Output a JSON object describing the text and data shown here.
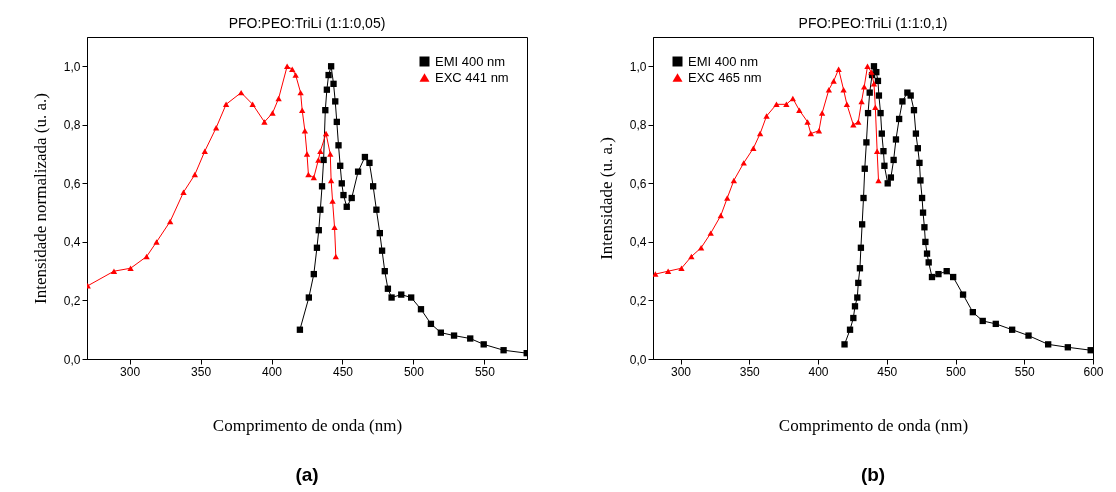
{
  "chart_data": [
    {
      "type": "line",
      "title": "PFO:PEO:TriLi (1:1:0,05)",
      "xlabel": "Comprimento de onda (nm)",
      "ylabel": "Intensidade normalizada (u. a.)",
      "annotations": [
        "(a)"
      ],
      "xlim": [
        270,
        580
      ],
      "xticks": [
        300,
        350,
        400,
        450,
        500,
        550
      ],
      "ylim": [
        0,
        1.1
      ],
      "yticks": [
        {
          "value": 0,
          "label": "0,0"
        },
        {
          "value": 0.2,
          "label": "0,2"
        },
        {
          "value": 0.4,
          "label": "0,4"
        },
        {
          "value": 0.6,
          "label": "0,6"
        },
        {
          "value": 0.8,
          "label": "0,8"
        },
        {
          "value": 1,
          "label": "1,0"
        }
      ],
      "grid": false,
      "legend": "top right",
      "series": [
        {
          "name": "EMI 400 nm",
          "color": "#000000",
          "marker": "square",
          "x": [
            420,
            426.3,
            429.8,
            432,
            433.3,
            434.4,
            435.6,
            436.7,
            437.9,
            439,
            440.2,
            442,
            443.7,
            444.9,
            446,
            447.2,
            448.4,
            449.5,
            450.7,
            453,
            456.5,
            461,
            465.8,
            469,
            471.6,
            473.9,
            476.3,
            477.9,
            479.8,
            482,
            484.6,
            491.4,
            498.4,
            505.3,
            512.3,
            519.3,
            528.6,
            540,
            549.5,
            563.5,
            579.8
          ],
          "values": [
            0.1,
            0.21,
            0.29,
            0.38,
            0.44,
            0.51,
            0.59,
            0.68,
            0.85,
            0.92,
            0.97,
            1.0,
            0.94,
            0.88,
            0.81,
            0.73,
            0.66,
            0.6,
            0.56,
            0.52,
            0.55,
            0.64,
            0.69,
            0.67,
            0.59,
            0.51,
            0.43,
            0.37,
            0.3,
            0.24,
            0.21,
            0.22,
            0.21,
            0.17,
            0.12,
            0.09,
            0.08,
            0.07,
            0.05,
            0.03,
            0.02
          ]
        },
        {
          "name": "EXC 441 nm",
          "color": "#ff0000",
          "marker": "triangle",
          "x": [
            270.5,
            289,
            300.7,
            312,
            319,
            328.6,
            338,
            346,
            353,
            361,
            368,
            378.6,
            386.7,
            395,
            400.7,
            405,
            411,
            414.6,
            417,
            420.5,
            421.6,
            423.5,
            425,
            426,
            429.8,
            433,
            434.4,
            438.4,
            441.4,
            442,
            443,
            444.4,
            445.3
          ],
          "values": [
            0.25,
            0.3,
            0.31,
            0.35,
            0.4,
            0.47,
            0.57,
            0.63,
            0.71,
            0.79,
            0.87,
            0.91,
            0.87,
            0.81,
            0.84,
            0.89,
            1.0,
            0.99,
            0.97,
            0.91,
            0.85,
            0.78,
            0.7,
            0.63,
            0.62,
            0.68,
            0.71,
            0.77,
            0.7,
            0.61,
            0.54,
            0.45,
            0.35
          ]
        }
      ]
    },
    {
      "type": "line",
      "title": "PFO:PEO:TriLi (1:1:0,1)",
      "xlabel": "Comprimento de onda (nm)",
      "ylabel": "Intensidade (u. a.)",
      "annotations": [
        "(b)"
      ],
      "xlim": [
        280,
        600
      ],
      "xticks": [
        300,
        350,
        400,
        450,
        500,
        550,
        600
      ],
      "ylim": [
        0,
        1.1
      ],
      "yticks": [
        {
          "value": 0,
          "label": "0,0"
        },
        {
          "value": 0.2,
          "label": "0,2"
        },
        {
          "value": 0.4,
          "label": "0,4"
        },
        {
          "value": 0.6,
          "label": "0,6"
        },
        {
          "value": 0.8,
          "label": "0,8"
        },
        {
          "value": 1,
          "label": "1,0"
        }
      ],
      "grid": false,
      "legend": "top left",
      "series": [
        {
          "name": "EMI 400 nm",
          "color": "#000000",
          "marker": "square",
          "x": [
            419.3,
            423.3,
            425.7,
            426.9,
            428.6,
            429.3,
            430.5,
            431.2,
            432.1,
            433.1,
            434,
            435.2,
            436.4,
            437.6,
            439.3,
            440.7,
            442.4,
            443.6,
            444.3,
            445.5,
            446.4,
            447.6,
            448.3,
            450.7,
            453,
            455,
            456.7,
            459,
            461.4,
            465,
            467.4,
            469.8,
            471.2,
            472.6,
            473.8,
            474.5,
            475.7,
            476.4,
            477.4,
            478.1,
            479.3,
            480.5,
            482.9,
            487.6,
            493.6,
            498.3,
            505.5,
            512.6,
            519.8,
            529.3,
            541.2,
            553.1,
            567.4,
            581.7,
            598.3
          ],
          "values": [
            0.05,
            0.1,
            0.14,
            0.18,
            0.21,
            0.26,
            0.31,
            0.38,
            0.46,
            0.55,
            0.65,
            0.74,
            0.84,
            0.91,
            0.97,
            1.0,
            0.98,
            0.95,
            0.9,
            0.84,
            0.77,
            0.71,
            0.66,
            0.6,
            0.62,
            0.68,
            0.75,
            0.82,
            0.88,
            0.91,
            0.9,
            0.85,
            0.77,
            0.72,
            0.67,
            0.61,
            0.55,
            0.5,
            0.45,
            0.4,
            0.36,
            0.33,
            0.28,
            0.29,
            0.3,
            0.28,
            0.22,
            0.16,
            0.13,
            0.12,
            0.1,
            0.08,
            0.05,
            0.04,
            0.03
          ]
        },
        {
          "name": "EXC 465 nm",
          "color": "#ff0000",
          "marker": "triangle",
          "x": [
            281.7,
            291,
            300.7,
            307.9,
            315,
            322,
            329.3,
            334,
            338.8,
            346,
            353,
            357.9,
            362.6,
            369.8,
            377,
            381.7,
            386.4,
            392.4,
            394.8,
            400.7,
            403,
            407.9,
            411.4,
            415,
            418.6,
            421,
            425.7,
            429.3,
            431.7,
            433.6,
            436,
            438.8,
            440.7,
            441.7,
            443,
            444
          ],
          "values": [
            0.29,
            0.3,
            0.31,
            0.35,
            0.38,
            0.43,
            0.49,
            0.55,
            0.61,
            0.67,
            0.72,
            0.77,
            0.83,
            0.87,
            0.87,
            0.89,
            0.85,
            0.81,
            0.77,
            0.78,
            0.84,
            0.92,
            0.95,
            0.99,
            0.92,
            0.87,
            0.8,
            0.81,
            0.88,
            0.93,
            1.0,
            0.98,
            0.94,
            0.86,
            0.71,
            0.61
          ]
        }
      ]
    }
  ]
}
